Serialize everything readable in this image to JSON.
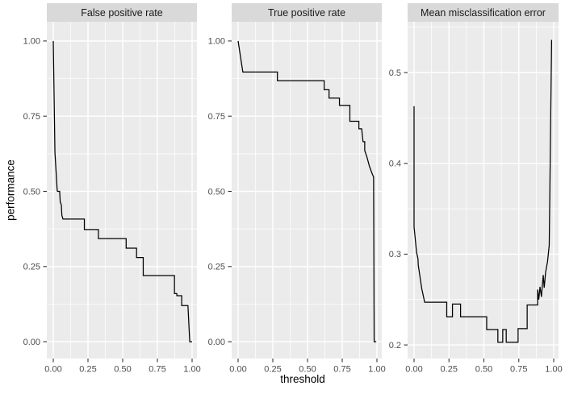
{
  "figure": {
    "background": "#FFFFFF"
  },
  "chart_data": {
    "type": "line",
    "xlabel": "threshold",
    "ylabel": "performance",
    "legend": "none",
    "grid": "on",
    "style": {
      "panel_bg": "#EBEBEB",
      "strip_bg": "#D9D9D9",
      "grid_color": "#FFFFFF",
      "line_color": "#000000",
      "tick_text_color": "#4D4D4D",
      "tick_mark_color": "#333333",
      "axis_title_color": "#000000"
    },
    "x_ticks": {
      "values": [
        0,
        0.25,
        0.5,
        0.75,
        1.0
      ],
      "labels": [
        "0.00",
        "0.25",
        "0.50",
        "0.75",
        "1.00"
      ]
    },
    "x_minor": [
      0.125,
      0.375,
      0.625,
      0.875
    ],
    "x_range_panel": [
      0,
      1
    ],
    "panels": [
      {
        "title": "False positive rate",
        "y_ticks": {
          "values": [
            1.0,
            0.75,
            0.5,
            0.25,
            0.0
          ],
          "labels": [
            "1.00",
            "0.75",
            "0.50",
            "0.25",
            "0.00"
          ]
        },
        "y_minor": [
          0.125,
          0.375,
          0.625,
          0.875
        ],
        "y_range_panel": [
          -0.056,
          1.064
        ],
        "points": [
          [
            0.0,
            1.0
          ],
          [
            0.012,
            0.63
          ],
          [
            0.028,
            0.505
          ],
          [
            0.03,
            0.5
          ],
          [
            0.046,
            0.5
          ],
          [
            0.05,
            0.465
          ],
          [
            0.058,
            0.455
          ],
          [
            0.062,
            0.42
          ],
          [
            0.07,
            0.408
          ],
          [
            0.224,
            0.408
          ],
          [
            0.224,
            0.373
          ],
          [
            0.325,
            0.373
          ],
          [
            0.325,
            0.343
          ],
          [
            0.525,
            0.343
          ],
          [
            0.525,
            0.311
          ],
          [
            0.6,
            0.311
          ],
          [
            0.6,
            0.28
          ],
          [
            0.648,
            0.28
          ],
          [
            0.648,
            0.22
          ],
          [
            0.873,
            0.22
          ],
          [
            0.873,
            0.16
          ],
          [
            0.89,
            0.16
          ],
          [
            0.89,
            0.153
          ],
          [
            0.925,
            0.153
          ],
          [
            0.925,
            0.12
          ],
          [
            0.97,
            0.12
          ],
          [
            0.983,
            0.0
          ],
          [
            1.0,
            0.0
          ]
        ]
      },
      {
        "title": "True positive rate",
        "y_ticks": {
          "values": [
            1.0,
            0.75,
            0.5,
            0.25,
            0.0
          ],
          "labels": [
            "1.00",
            "0.75",
            "0.50",
            "0.25",
            "0.00"
          ]
        },
        "y_minor": [
          0.125,
          0.375,
          0.625,
          0.875
        ],
        "y_range_panel": [
          -0.056,
          1.064
        ],
        "points": [
          [
            0.0,
            1.0
          ],
          [
            0.034,
            0.897
          ],
          [
            0.283,
            0.897
          ],
          [
            0.283,
            0.868
          ],
          [
            0.62,
            0.868
          ],
          [
            0.62,
            0.838
          ],
          [
            0.655,
            0.838
          ],
          [
            0.655,
            0.81
          ],
          [
            0.73,
            0.81
          ],
          [
            0.73,
            0.786
          ],
          [
            0.805,
            0.786
          ],
          [
            0.805,
            0.733
          ],
          [
            0.87,
            0.733
          ],
          [
            0.87,
            0.708
          ],
          [
            0.89,
            0.708
          ],
          [
            0.9,
            0.665
          ],
          [
            0.912,
            0.665
          ],
          [
            0.912,
            0.636
          ],
          [
            0.928,
            0.614
          ],
          [
            0.945,
            0.585
          ],
          [
            0.958,
            0.568
          ],
          [
            0.968,
            0.556
          ],
          [
            0.976,
            0.548
          ],
          [
            0.98,
            0.0
          ],
          [
            0.995,
            0.0
          ]
        ]
      },
      {
        "title": "Mean misclassification error",
        "y_ticks": {
          "values": [
            0.5,
            0.4,
            0.3,
            0.2
          ],
          "labels": [
            "0.5",
            "0.4",
            "0.3",
            "0.2"
          ]
        },
        "y_minor": [
          0.25,
          0.35,
          0.45,
          0.55
        ],
        "y_range_panel": [
          0.185,
          0.556
        ],
        "points": [
          [
            0.0,
            0.463
          ],
          [
            0.0,
            0.33
          ],
          [
            0.018,
            0.302
          ],
          [
            0.028,
            0.295
          ],
          [
            0.03,
            0.288
          ],
          [
            0.055,
            0.262
          ],
          [
            0.076,
            0.247
          ],
          [
            0.234,
            0.247
          ],
          [
            0.234,
            0.231
          ],
          [
            0.275,
            0.231
          ],
          [
            0.275,
            0.245
          ],
          [
            0.333,
            0.245
          ],
          [
            0.333,
            0.231
          ],
          [
            0.52,
            0.231
          ],
          [
            0.52,
            0.217
          ],
          [
            0.6,
            0.217
          ],
          [
            0.6,
            0.203
          ],
          [
            0.635,
            0.203
          ],
          [
            0.635,
            0.217
          ],
          [
            0.66,
            0.217
          ],
          [
            0.66,
            0.203
          ],
          [
            0.745,
            0.203
          ],
          [
            0.745,
            0.218
          ],
          [
            0.81,
            0.218
          ],
          [
            0.81,
            0.244
          ],
          [
            0.885,
            0.244
          ],
          [
            0.885,
            0.261
          ],
          [
            0.893,
            0.25
          ],
          [
            0.902,
            0.264
          ],
          [
            0.912,
            0.253
          ],
          [
            0.925,
            0.277
          ],
          [
            0.932,
            0.263
          ],
          [
            0.942,
            0.28
          ],
          [
            0.956,
            0.292
          ],
          [
            0.968,
            0.31
          ],
          [
            0.985,
            0.536
          ]
        ]
      }
    ]
  }
}
